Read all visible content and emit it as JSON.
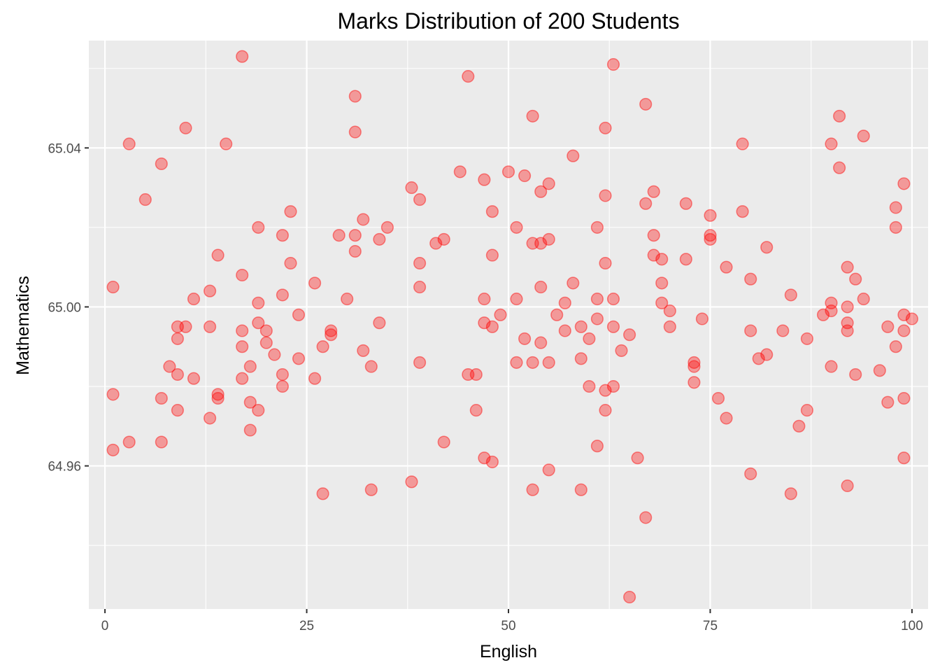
{
  "chart_data": {
    "type": "scatter",
    "title": "Marks Distribution of 200 Students",
    "xlabel": "English",
    "ylabel": "Mathematics",
    "xlim": [
      -2,
      102
    ],
    "ylim": [
      64.924,
      65.067
    ],
    "x_ticks": [
      0,
      25,
      50,
      75,
      100
    ],
    "x_tick_labels": [
      "0",
      "25",
      "50",
      "75",
      "100"
    ],
    "y_ticks": [
      64.96,
      65.0,
      65.04
    ],
    "y_tick_labels": [
      "64.96",
      "65.00",
      "65.04"
    ],
    "grid": true,
    "legend": "none",
    "point_color": "#ff0000",
    "background": "#ebebeb",
    "points": [
      [
        1,
        65.005
      ],
      [
        1,
        64.978
      ],
      [
        1,
        64.964
      ],
      [
        3,
        65.041
      ],
      [
        3,
        64.966
      ],
      [
        5,
        65.027
      ],
      [
        7,
        65.036
      ],
      [
        7,
        64.977
      ],
      [
        7,
        64.966
      ],
      [
        8,
        64.985
      ],
      [
        9,
        64.995
      ],
      [
        9,
        64.992
      ],
      [
        9,
        64.983
      ],
      [
        9,
        64.974
      ],
      [
        10,
        65.045
      ],
      [
        10,
        64.995
      ],
      [
        11,
        65.002
      ],
      [
        11,
        64.982
      ],
      [
        13,
        65.004
      ],
      [
        13,
        64.995
      ],
      [
        13,
        64.972
      ],
      [
        14,
        65.013
      ],
      [
        14,
        64.977
      ],
      [
        14,
        64.978
      ],
      [
        15,
        65.041
      ],
      [
        17,
        65.063
      ],
      [
        17,
        65.008
      ],
      [
        17,
        64.994
      ],
      [
        17,
        64.99
      ],
      [
        17,
        64.982
      ],
      [
        18,
        64.985
      ],
      [
        18,
        64.976
      ],
      [
        18,
        64.969
      ],
      [
        19,
        65.02
      ],
      [
        19,
        65.001
      ],
      [
        19,
        64.996
      ],
      [
        19,
        64.974
      ],
      [
        20,
        64.994
      ],
      [
        20,
        64.991
      ],
      [
        21,
        64.988
      ],
      [
        22,
        65.018
      ],
      [
        22,
        65.003
      ],
      [
        22,
        64.983
      ],
      [
        22,
        64.98
      ],
      [
        23,
        65.024
      ],
      [
        23,
        65.011
      ],
      [
        24,
        64.998
      ],
      [
        24,
        64.987
      ],
      [
        26,
        65.006
      ],
      [
        26,
        64.982
      ],
      [
        27,
        64.99
      ],
      [
        27,
        64.953
      ],
      [
        28,
        64.994
      ],
      [
        28,
        64.993
      ],
      [
        29,
        65.018
      ],
      [
        30,
        65.002
      ],
      [
        31,
        65.053
      ],
      [
        31,
        65.044
      ],
      [
        31,
        65.018
      ],
      [
        31,
        65.014
      ],
      [
        32,
        65.022
      ],
      [
        32,
        64.989
      ],
      [
        33,
        64.985
      ],
      [
        33,
        64.954
      ],
      [
        34,
        65.017
      ],
      [
        34,
        64.996
      ],
      [
        35,
        65.02
      ],
      [
        38,
        65.03
      ],
      [
        38,
        64.956
      ],
      [
        39,
        65.027
      ],
      [
        39,
        65.011
      ],
      [
        39,
        65.005
      ],
      [
        39,
        64.986
      ],
      [
        41,
        65.016
      ],
      [
        42,
        65.017
      ],
      [
        42,
        64.966
      ],
      [
        44,
        65.034
      ],
      [
        45,
        65.058
      ],
      [
        45,
        64.983
      ],
      [
        46,
        64.983
      ],
      [
        46,
        64.974
      ],
      [
        47,
        65.032
      ],
      [
        47,
        65.002
      ],
      [
        47,
        64.996
      ],
      [
        47,
        64.962
      ],
      [
        48,
        65.024
      ],
      [
        48,
        65.013
      ],
      [
        48,
        64.995
      ],
      [
        48,
        64.961
      ],
      [
        49,
        64.998
      ],
      [
        50,
        65.034
      ],
      [
        51,
        65.02
      ],
      [
        51,
        65.002
      ],
      [
        51,
        64.986
      ],
      [
        52,
        65.033
      ],
      [
        52,
        64.992
      ],
      [
        53,
        65.048
      ],
      [
        53,
        65.016
      ],
      [
        53,
        64.986
      ],
      [
        53,
        64.954
      ],
      [
        54,
        65.029
      ],
      [
        54,
        65.016
      ],
      [
        54,
        65.005
      ],
      [
        54,
        64.991
      ],
      [
        55,
        65.031
      ],
      [
        55,
        65.017
      ],
      [
        55,
        64.986
      ],
      [
        55,
        64.959
      ],
      [
        56,
        64.998
      ],
      [
        57,
        65.001
      ],
      [
        57,
        64.994
      ],
      [
        58,
        65.038
      ],
      [
        58,
        65.006
      ],
      [
        59,
        64.995
      ],
      [
        59,
        64.987
      ],
      [
        59,
        64.954
      ],
      [
        60,
        64.992
      ],
      [
        60,
        64.98
      ],
      [
        61,
        65.02
      ],
      [
        61,
        65.002
      ],
      [
        61,
        64.997
      ],
      [
        61,
        64.965
      ],
      [
        62,
        65.045
      ],
      [
        62,
        65.028
      ],
      [
        62,
        65.011
      ],
      [
        62,
        64.979
      ],
      [
        62,
        64.974
      ],
      [
        63,
        65.061
      ],
      [
        63,
        65.002
      ],
      [
        63,
        64.995
      ],
      [
        63,
        64.98
      ],
      [
        64,
        64.989
      ],
      [
        65,
        64.993
      ],
      [
        65,
        64.927
      ],
      [
        66,
        64.962
      ],
      [
        67,
        65.051
      ],
      [
        67,
        65.026
      ],
      [
        67,
        64.947
      ],
      [
        68,
        65.029
      ],
      [
        68,
        65.018
      ],
      [
        68,
        65.013
      ],
      [
        69,
        65.012
      ],
      [
        69,
        65.006
      ],
      [
        69,
        65.001
      ],
      [
        70,
        64.999
      ],
      [
        70,
        64.995
      ],
      [
        72,
        65.026
      ],
      [
        72,
        65.012
      ],
      [
        73,
        64.986
      ],
      [
        73,
        64.985
      ],
      [
        73,
        64.981
      ],
      [
        74,
        64.997
      ],
      [
        75,
        65.023
      ],
      [
        75,
        65.018
      ],
      [
        75,
        65.017
      ],
      [
        76,
        64.977
      ],
      [
        77,
        65.01
      ],
      [
        77,
        64.972
      ],
      [
        79,
        65.041
      ],
      [
        79,
        65.024
      ],
      [
        80,
        65.007
      ],
      [
        80,
        64.994
      ],
      [
        80,
        64.958
      ],
      [
        81,
        64.987
      ],
      [
        82,
        65.015
      ],
      [
        82,
        64.988
      ],
      [
        84,
        64.994
      ],
      [
        85,
        65.003
      ],
      [
        85,
        64.953
      ],
      [
        86,
        64.97
      ],
      [
        87,
        64.992
      ],
      [
        87,
        64.974
      ],
      [
        89,
        64.998
      ],
      [
        90,
        65.041
      ],
      [
        90,
        65.001
      ],
      [
        90,
        64.999
      ],
      [
        90,
        64.985
      ],
      [
        91,
        65.048
      ],
      [
        91,
        65.035
      ],
      [
        92,
        65.01
      ],
      [
        92,
        65.0
      ],
      [
        92,
        64.996
      ],
      [
        92,
        64.994
      ],
      [
        92,
        64.955
      ],
      [
        93,
        65.007
      ],
      [
        93,
        64.983
      ],
      [
        94,
        65.043
      ],
      [
        94,
        65.002
      ],
      [
        96,
        64.984
      ],
      [
        97,
        64.995
      ],
      [
        97,
        64.976
      ],
      [
        98,
        65.025
      ],
      [
        98,
        65.02
      ],
      [
        98,
        64.99
      ],
      [
        99,
        65.031
      ],
      [
        99,
        64.998
      ],
      [
        99,
        64.994
      ],
      [
        99,
        64.977
      ],
      [
        99,
        64.962
      ],
      [
        100,
        64.997
      ]
    ]
  }
}
